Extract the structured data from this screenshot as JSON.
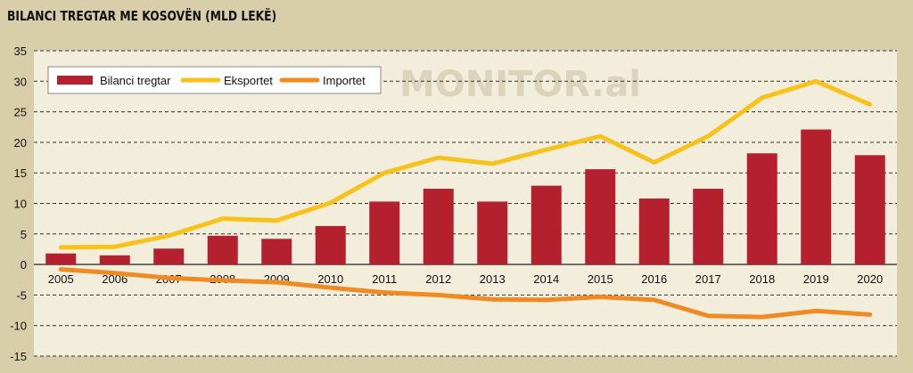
{
  "title": "BILANCI TREGTAR ME KOSOVËN (MLD LEKË)",
  "watermark": "MONITOR.al",
  "colors": {
    "background": "#d9ceaa",
    "plot_background": "#f3eddc",
    "bar": "#b5202e",
    "exports": "#f7c21b",
    "imports": "#f08a22",
    "grid": "#333333"
  },
  "chart_data": {
    "type": "bar",
    "title": "BILANCI TREGTAR ME KOSOVËN (MLD LEKË)",
    "xlabel": "",
    "ylabel": "",
    "ylim": [
      -15,
      35
    ],
    "yticks": [
      35,
      30,
      25,
      20,
      15,
      10,
      5,
      0,
      -5,
      -10,
      -15
    ],
    "grid": true,
    "legend_position": "top-left",
    "categories": [
      "2005",
      "2006",
      "2007",
      "2008",
      "2009",
      "2010",
      "2011",
      "2012",
      "2013",
      "2014",
      "2015",
      "2016",
      "2017",
      "2018",
      "2019",
      "2020"
    ],
    "series": [
      {
        "name": "Bilanci tregtar",
        "kind": "bar",
        "color": "#b5202e",
        "values": [
          1.8,
          1.5,
          2.6,
          4.7,
          4.2,
          6.3,
          10.3,
          12.4,
          10.3,
          12.9,
          15.6,
          10.8,
          12.4,
          18.2,
          22.1,
          17.9
        ]
      },
      {
        "name": "Eksportet",
        "kind": "line",
        "color": "#f7c21b",
        "values": [
          2.8,
          2.9,
          4.7,
          7.5,
          7.2,
          10.1,
          15.0,
          17.5,
          16.5,
          18.8,
          21.0,
          16.7,
          21.0,
          27.3,
          30.0,
          26.2
        ]
      },
      {
        "name": "Importet",
        "kind": "line",
        "color": "#f08a22",
        "values": [
          -0.8,
          -1.4,
          -2.2,
          -2.6,
          -2.9,
          -3.8,
          -4.6,
          -5.0,
          -5.7,
          -5.8,
          -5.3,
          -5.8,
          -8.4,
          -8.6,
          -7.6,
          -8.2
        ]
      }
    ]
  }
}
